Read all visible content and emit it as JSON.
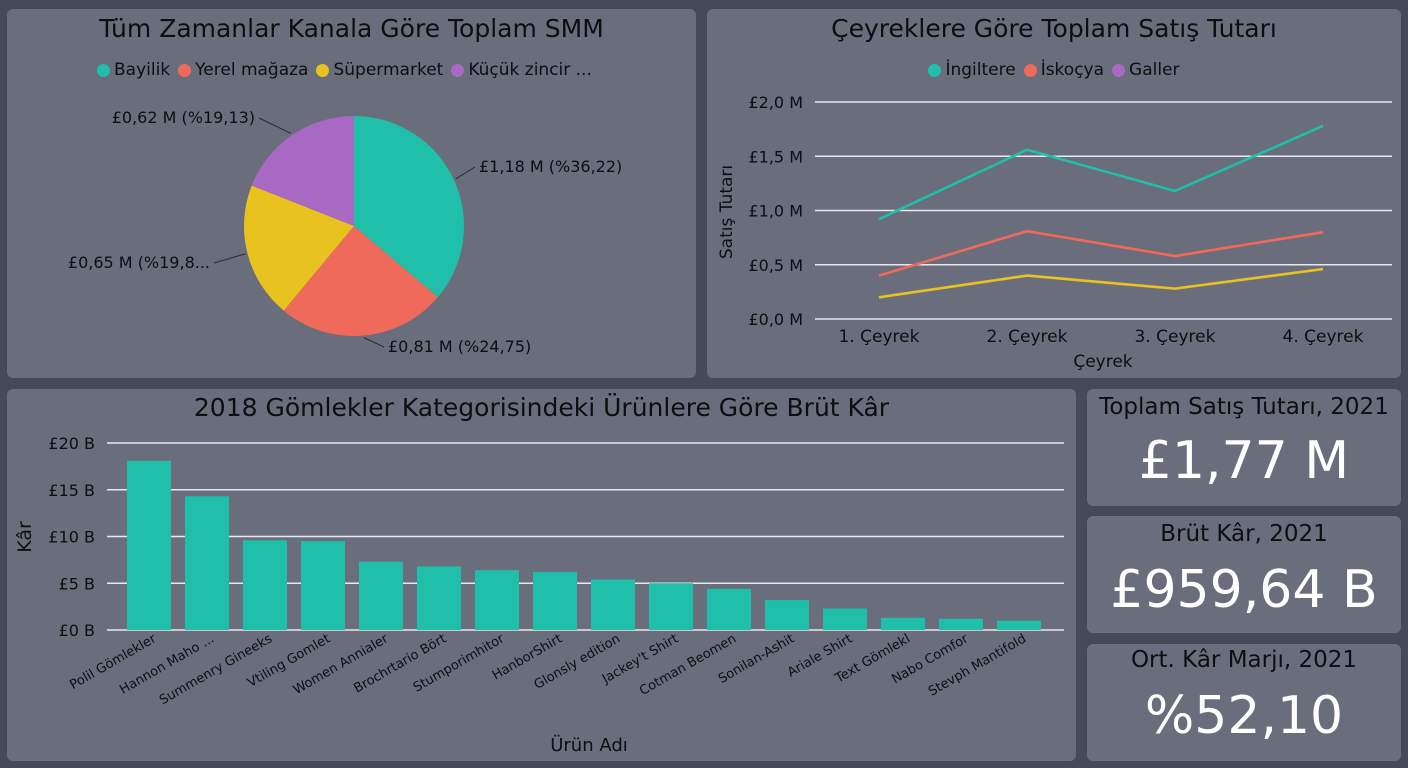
{
  "pie": {
    "title": "Tüm Zamanlar Kanala Göre Toplam SMM",
    "legend": [
      {
        "label": "Bayilik",
        "color": "#1fbfaa"
      },
      {
        "label": "Yerel mağaza",
        "color": "#ef6a5a"
      },
      {
        "label": "Süpermarket",
        "color": "#e8c21f"
      },
      {
        "label": "Küçük zincir ...",
        "color": "#a769c2"
      }
    ]
  },
  "line": {
    "title": "Çeyreklere Göre Toplam Satış Tutarı",
    "legend": [
      {
        "label": "İngiltere",
        "color": "#1fbfaa"
      },
      {
        "label": "İskoçya",
        "color": "#ef6a5a"
      },
      {
        "label": "Galler",
        "color": "#e8c21f"
      }
    ]
  },
  "bar": {
    "title": "2018 Gömlekler Kategorisindeki Ürünlere Göre Brüt Kâr"
  },
  "kpis": [
    {
      "title": "Toplam Satış Tutarı, 2021",
      "value": "£1,77 M"
    },
    {
      "title": "Brüt Kâr, 2021",
      "value": "£959,64 B"
    },
    {
      "title": "Ort. Kâr Marjı, 2021",
      "value": "%52,10"
    }
  ],
  "chart_data": [
    {
      "type": "pie",
      "title": "Tüm Zamanlar Kanala Göre Toplam SMM",
      "slices": [
        {
          "name": "Bayilik",
          "value": 1.18,
          "label": "£1,18 M (%36,22)",
          "color": "#1fbfaa"
        },
        {
          "name": "Yerel mağaza",
          "value": 0.81,
          "label": "£0,81 M (%24,75)",
          "color": "#ef6a5a"
        },
        {
          "name": "Süpermarket",
          "value": 0.65,
          "label": "£0,65 M (%19,8...",
          "color": "#e8c21f"
        },
        {
          "name": "Küçük zincir ...",
          "value": 0.62,
          "label": "£0,62 M (%19,13)",
          "color": "#a769c2"
        }
      ]
    },
    {
      "type": "line",
      "title": "Çeyreklere Göre Toplam Satış Tutarı",
      "xlabel": "Çeyrek",
      "ylabel": "Satış Tutarı",
      "categories": [
        "1. Çeyrek",
        "2. Çeyrek",
        "3. Çeyrek",
        "4. Çeyrek"
      ],
      "ylim": [
        0,
        2
      ],
      "yticks": [
        {
          "value": 0,
          "label": "£0,0 M"
        },
        {
          "value": 0.5,
          "label": "£0,5 M"
        },
        {
          "value": 1,
          "label": "£1,0 M"
        },
        {
          "value": 1.5,
          "label": "£1,5 M"
        },
        {
          "value": 2,
          "label": "£2,0 M"
        }
      ],
      "series": [
        {
          "name": "İngiltere",
          "color": "#1fbfaa",
          "values": [
            0.92,
            1.56,
            1.18,
            1.78
          ]
        },
        {
          "name": "İskoçya",
          "color": "#ef6a5a",
          "values": [
            0.4,
            0.81,
            0.58,
            0.8
          ]
        },
        {
          "name": "Galler",
          "color": "#e8c21f",
          "values": [
            0.2,
            0.4,
            0.28,
            0.46
          ]
        }
      ],
      "grid": true,
      "legend": "top"
    },
    {
      "type": "bar",
      "title": "2018 Gömlekler Kategorisindeki Ürünlere Göre Brüt Kâr",
      "xlabel": "Ürün Adı",
      "ylabel": "Kâr",
      "ylim": [
        0,
        20
      ],
      "yticks": [
        {
          "value": 0,
          "label": "£0 B"
        },
        {
          "value": 5,
          "label": "£5 B"
        },
        {
          "value": 10,
          "label": "£10 B"
        },
        {
          "value": 15,
          "label": "£15 B"
        },
        {
          "value": 20,
          "label": "£20 B"
        }
      ],
      "color": "#1fbfaa",
      "categories": [
        "Polil Gömlekler",
        "Hannon Maho ...",
        "Summenry Gineeks",
        "Vtiling Gomlet",
        "Women Annialer",
        "Brochrtario Bört",
        "Stumporimhitor",
        "HanborShirt",
        "Glonsly edition",
        "Jackey't Shirt",
        "Cotman Beomen",
        "Sonilan-Ashit",
        "Ariale Shirt",
        "Text Gömlekl",
        "Nabo Comfor",
        "Stevph Mantifold"
      ],
      "values": [
        18.1,
        14.3,
        9.6,
        9.5,
        7.3,
        6.8,
        6.4,
        6.2,
        5.4,
        5.0,
        4.4,
        3.2,
        2.3,
        1.3,
        1.2,
        1.0
      ],
      "grid": true
    }
  ]
}
